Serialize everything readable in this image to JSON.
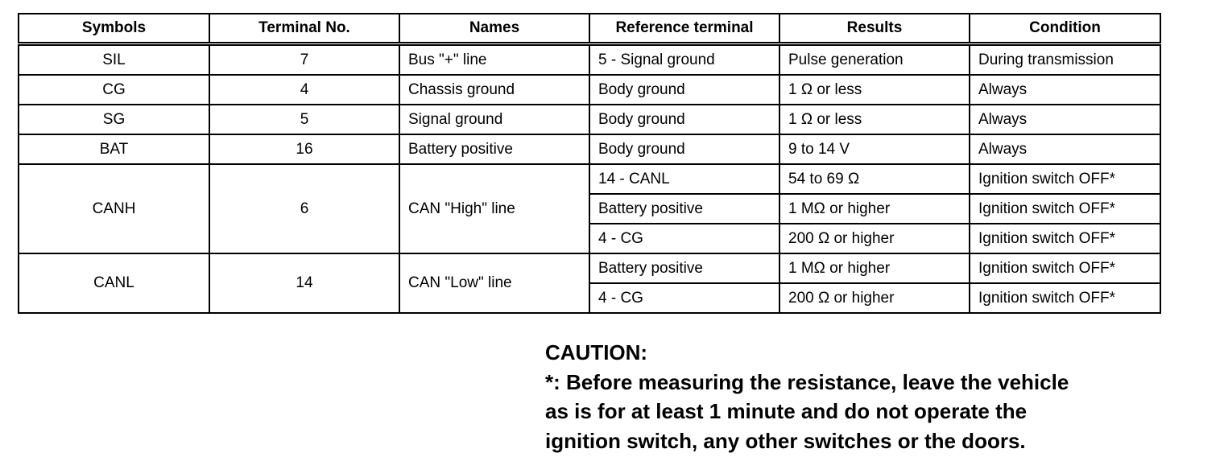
{
  "table": {
    "headers": [
      "Symbols",
      "Terminal No.",
      "Names",
      "Reference terminal",
      "Results",
      "Condition"
    ],
    "groups": [
      {
        "symbol": "SIL",
        "terminal": "7",
        "name": "Bus \"+\" line",
        "checks": [
          {
            "reference": "5 - Signal ground",
            "result": "Pulse generation",
            "condition": "During transmission"
          }
        ]
      },
      {
        "symbol": "CG",
        "terminal": "4",
        "name": "Chassis ground",
        "checks": [
          {
            "reference": "Body ground",
            "result": "1 Ω or less",
            "condition": "Always"
          }
        ]
      },
      {
        "symbol": "SG",
        "terminal": "5",
        "name": "Signal ground",
        "checks": [
          {
            "reference": "Body ground",
            "result": "1 Ω or less",
            "condition": "Always"
          }
        ]
      },
      {
        "symbol": "BAT",
        "terminal": "16",
        "name": "Battery positive",
        "checks": [
          {
            "reference": "Body ground",
            "result": "9 to 14 V",
            "condition": "Always"
          }
        ]
      },
      {
        "symbol": "CANH",
        "terminal": "6",
        "name": "CAN \"High\" line",
        "checks": [
          {
            "reference": "14 - CANL",
            "result": "54 to 69 Ω",
            "condition": "Ignition switch OFF*"
          },
          {
            "reference": "Battery positive",
            "result": "1 MΩ or higher",
            "condition": "Ignition switch OFF*"
          },
          {
            "reference": "4 - CG",
            "result": "200 Ω or higher",
            "condition": "Ignition switch OFF*"
          }
        ]
      },
      {
        "symbol": "CANL",
        "terminal": "14",
        "name": "CAN \"Low\" line",
        "checks": [
          {
            "reference": "Battery positive",
            "result": "1 MΩ or higher",
            "condition": "Ignition switch OFF*"
          },
          {
            "reference": "4 - CG",
            "result": "200 Ω or higher",
            "condition": "Ignition switch OFF*"
          }
        ]
      }
    ]
  },
  "caution": {
    "title": "CAUTION:",
    "lines": [
      "*: Before measuring the resistance, leave the vehicle",
      "as is for at least 1 minute and do not operate the",
      "ignition switch, any other switches or the doors."
    ]
  }
}
